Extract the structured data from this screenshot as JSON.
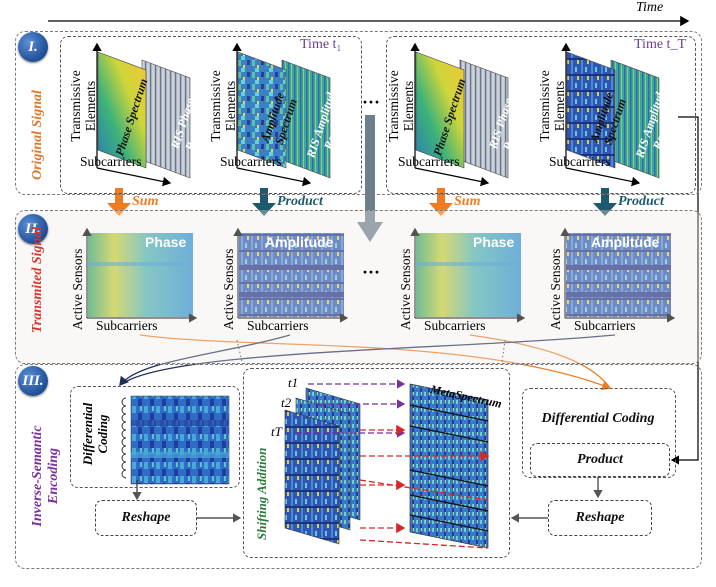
{
  "time_axis": {
    "label": "Time"
  },
  "stage1": {
    "badge": "I.",
    "label": "Original Signal",
    "time_left": "Time t₁",
    "time_right": "Time t_T",
    "ellipsis": "···",
    "panels": [
      {
        "y_label": "Transmissive Elements",
        "x_label": "Subcarriers",
        "front_title": "Phase Spectrum",
        "back_title": "RIS Phase Response"
      },
      {
        "y_label": "Transmissive Elements",
        "x_label": "Subcarriers",
        "front_title": "Amplitude Spectrum",
        "back_title": "RIS Amplitude Response"
      },
      {
        "y_label": "Transmissive Elements",
        "x_label": "Subcarriers",
        "front_title": "Phase Spectrum",
        "back_title": "RIS Phase Response"
      },
      {
        "y_label": "Transmissive Elements",
        "x_label": "Subcarriers",
        "front_title": "Amplitude Spectrum",
        "back_title": "RIS Amplitude Response"
      }
    ],
    "ops": [
      "Sum",
      "Product",
      "Sum",
      "Product"
    ]
  },
  "stage2": {
    "badge": "II.",
    "label": "Transmited Signal",
    "ellipsis": "···",
    "panels": [
      {
        "title": "Phase",
        "y_label": "Active Sensors",
        "x_label": "Subcarriers"
      },
      {
        "title": "Amplitude",
        "y_label": "Active Sensors",
        "x_label": "Subcarriers"
      },
      {
        "title": "Phase",
        "y_label": "Active Sensors",
        "x_label": "Subcarriers"
      },
      {
        "title": "Amplitude",
        "y_label": "Active Sensors",
        "x_label": "Subcarriers"
      }
    ]
  },
  "stage3": {
    "badge": "III.",
    "label": "Inverse-Semantic Encoding",
    "diff_coding_left": "Differential Coding",
    "reshape_left": "Reshape",
    "shifting_addition": "Shifting Addition",
    "meta_spectrum": "MetaSpectrum",
    "t_labels": [
      "t1",
      "t2",
      "tT"
    ],
    "diff_coding_right": "Differential Coding",
    "product_right": "Product",
    "reshape_right": "Reshape"
  },
  "colors": {
    "badge": "#1f4e96",
    "stage1_label": "#e0782a",
    "stage2_label": "#d9362b",
    "stage3_label": "#7b2f9e",
    "sum_arrow": "#f07c22",
    "product_arrow": "#1d5a6e",
    "time_label": "#6a3d9a"
  }
}
